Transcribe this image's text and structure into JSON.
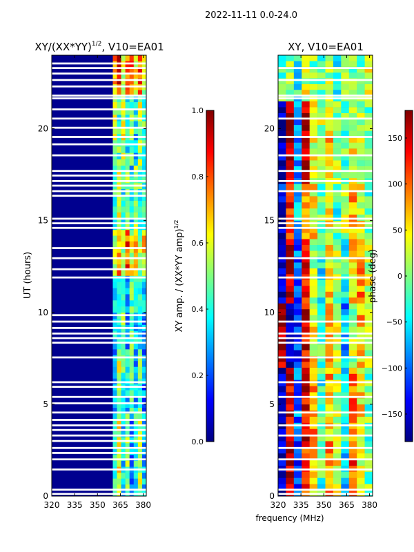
{
  "suptitle": "2022-11-11 0.0-24.0",
  "colors": {
    "background_fill": "#00008f",
    "gap_fill": "#ffffff",
    "jet_stops": [
      "#00007f",
      "#0000ff",
      "#007fff",
      "#00ffff",
      "#7fff7f",
      "#ffff00",
      "#ff7f00",
      "#ff0000",
      "#7f0000"
    ]
  },
  "chart_data": [
    {
      "type": "heatmap",
      "id": "amp",
      "title": "XY/(XX*YY)",
      "title_sup": "1/2",
      "title_suffix": ", V10=EA01",
      "xlabel": "",
      "ylabel": "UT (hours)",
      "xlim": [
        320,
        382
      ],
      "ylim": [
        0,
        24
      ],
      "xticks": [
        320,
        335,
        350,
        365,
        380
      ],
      "yticks": [
        0,
        5,
        10,
        15,
        20
      ],
      "value_range": [
        0,
        1
      ],
      "colorbar": {
        "label": "XY amp. / (XX*YY amp)",
        "label_sup": "1/2",
        "range": [
          0.0,
          1.0
        ],
        "ticks": [
          "0.0",
          "0.2",
          "0.4",
          "0.6",
          "0.8",
          "1.0"
        ]
      },
      "flagged_bands_mhz": [
        [
          320,
          360
        ]
      ],
      "active_band_mhz": [
        360,
        382
      ],
      "gaps_ut": [
        0.12,
        0.35,
        1.45,
        2.0,
        2.35,
        2.62,
        3.0,
        3.3,
        3.6,
        3.85,
        4.15,
        4.55,
        5.05,
        5.4,
        5.95,
        6.2,
        7.55,
        8.35,
        8.6,
        8.85,
        9.15,
        9.5,
        9.85,
        11.9,
        12.35,
        12.95,
        13.5,
        14.6,
        14.85,
        15.1,
        16.35,
        16.6,
        16.9,
        17.15,
        17.45,
        17.7,
        18.55,
        19.15,
        19.55,
        20.05,
        20.55,
        21.05,
        21.65,
        21.8,
        22.3,
        22.65,
        23.0,
        23.3,
        23.55
      ],
      "band_pattern": [
        {
          "from": 0,
          "to": 4.5,
          "values": [
            0.45,
            0.6,
            0.35,
            0.5,
            0.25,
            0.4,
            0.55,
            0.3
          ]
        },
        {
          "from": 4.5,
          "to": 8,
          "values": [
            0.3,
            0.55,
            0.45,
            0.35,
            0.5,
            0.3,
            0.45,
            0.25
          ]
        },
        {
          "from": 8,
          "to": 12,
          "values": [
            0.35,
            0.4,
            0.5,
            0.3,
            0.45,
            0.35,
            0.4,
            0.3
          ]
        },
        {
          "from": 12,
          "to": 14.5,
          "values": [
            0.6,
            0.75,
            0.55,
            0.8,
            0.6,
            0.7,
            0.5,
            0.65
          ]
        },
        {
          "from": 14.5,
          "to": 18,
          "values": [
            0.45,
            0.6,
            0.4,
            0.55,
            0.35,
            0.5,
            0.45,
            0.4
          ]
        },
        {
          "from": 18,
          "to": 21.8,
          "values": [
            0.55,
            0.45,
            0.6,
            0.4,
            0.5,
            0.35,
            0.55,
            0.45
          ]
        },
        {
          "from": 21.8,
          "to": 24,
          "values": [
            0.7,
            0.85,
            0.6,
            0.8,
            0.75,
            0.65,
            0.8,
            0.55
          ]
        }
      ]
    },
    {
      "type": "heatmap",
      "id": "phase",
      "title": "XY, V10=EA01",
      "title_sup": "",
      "title_suffix": "",
      "xlabel": "frequency (MHz)",
      "ylabel": "",
      "xlim": [
        320,
        382
      ],
      "ylim": [
        0,
        24
      ],
      "xticks": [
        320,
        335,
        350,
        365,
        380
      ],
      "yticks": [
        0,
        5,
        10,
        15,
        20
      ],
      "value_range": [
        -180,
        180
      ],
      "colorbar": {
        "label": "phase (deg)",
        "label_sup": "",
        "range": [
          -180,
          180
        ],
        "ticks": [
          "−150",
          "−100",
          "−50",
          "0",
          "50",
          "100",
          "150"
        ],
        "tick_values": [
          -150,
          -100,
          -50,
          0,
          50,
          100,
          150
        ]
      },
      "gaps_ut": [
        0.12,
        0.35,
        1.45,
        2.0,
        2.62,
        3.3,
        3.85,
        4.55,
        5.4,
        6.2,
        7.55,
        8.35,
        8.6,
        8.85,
        9.5,
        11.9,
        12.95,
        14.6,
        14.85,
        15.1,
        16.6,
        17.15,
        17.7,
        18.55,
        19.55,
        20.55,
        21.65,
        21.8,
        22.65,
        23.3
      ],
      "band_pattern": [
        {
          "from": 0,
          "to": 3,
          "values": [
            -150,
            160,
            -110,
            120,
            60,
            -20,
            90,
            40,
            -60,
            110,
            30,
            0
          ]
        },
        {
          "from": 3,
          "to": 7,
          "values": [
            -160,
            150,
            -90,
            140,
            80,
            -30,
            70,
            20,
            -40,
            90,
            50,
            -10
          ]
        },
        {
          "from": 7,
          "to": 10.5,
          "values": [
            170,
            -170,
            -120,
            150,
            40,
            -10,
            60,
            30,
            -80,
            20,
            70,
            10
          ]
        },
        {
          "from": 10.5,
          "to": 14,
          "values": [
            -170,
            165,
            -100,
            130,
            20,
            -40,
            50,
            10,
            -30,
            60,
            80,
            30
          ]
        },
        {
          "from": 14,
          "to": 17,
          "values": [
            -140,
            120,
            -60,
            100,
            50,
            0,
            40,
            -20,
            10,
            70,
            40,
            -10
          ]
        },
        {
          "from": 17,
          "to": 21.5,
          "values": [
            -160,
            170,
            -80,
            160,
            30,
            20,
            60,
            10,
            -20,
            40,
            20,
            0
          ]
        },
        {
          "from": 21.5,
          "to": 24,
          "values": [
            -20,
            10,
            -40,
            30,
            0,
            -10,
            20,
            -30,
            10,
            0,
            -20,
            30
          ]
        }
      ]
    }
  ]
}
